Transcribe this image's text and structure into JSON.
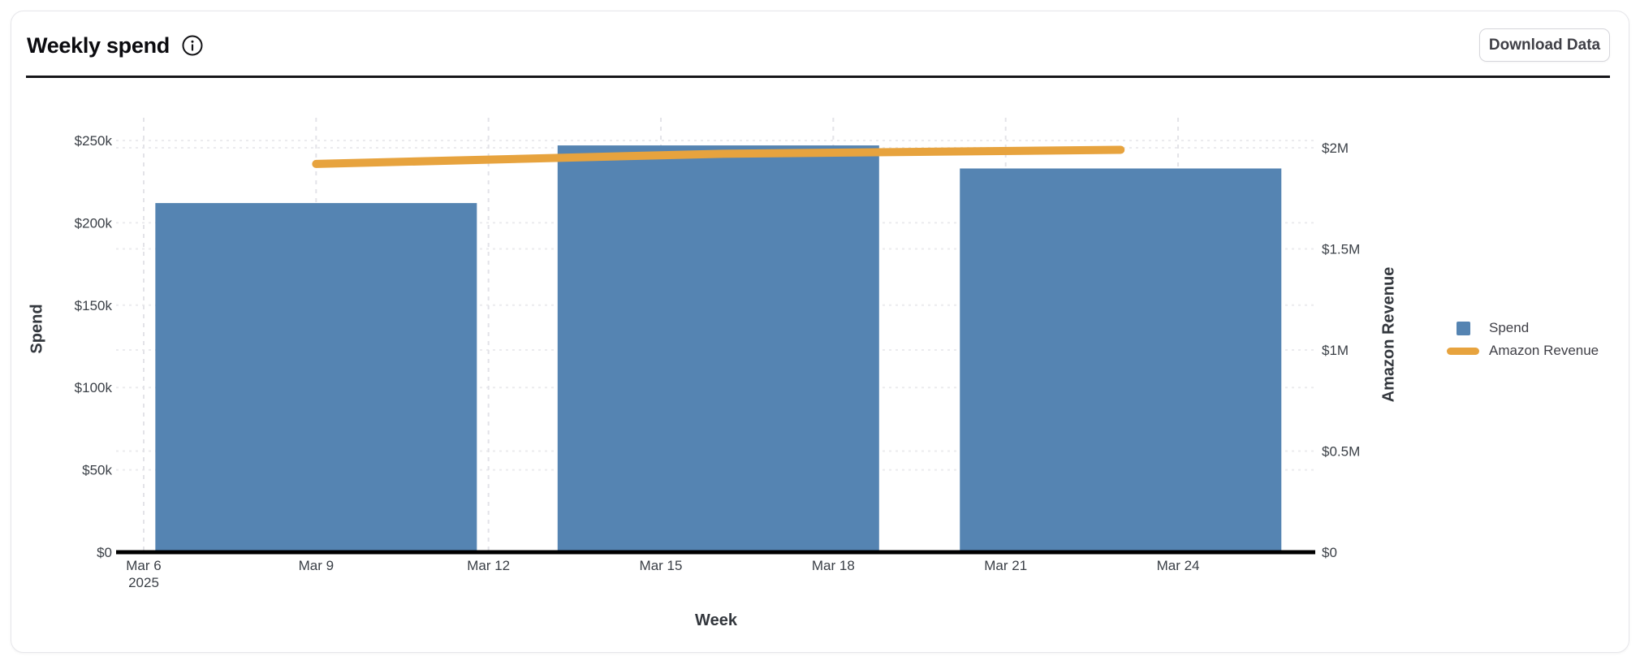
{
  "header": {
    "title": "Weekly spend",
    "info_icon": "info-icon",
    "download_button_label": "Download Data"
  },
  "legend": {
    "position": "right",
    "items": [
      {
        "label": "Spend",
        "marker": "square",
        "color": "#5584b2"
      },
      {
        "label": "Amazon Revenue",
        "marker": "line",
        "color": "#e7a33e"
      }
    ]
  },
  "chart_data": {
    "type": "bar",
    "title": "Weekly spend",
    "xlabel": "Week",
    "x_tick_labels": [
      [
        "Mar 6",
        "2025"
      ],
      "Mar 9",
      "Mar 12",
      "Mar 15",
      "Mar 18",
      "Mar 21",
      "Mar 24"
    ],
    "x_tick_day_offsets": [
      0,
      3,
      6,
      9,
      12,
      15,
      18
    ],
    "bar_center_day_offsets": [
      3,
      10,
      17
    ],
    "left_axis": {
      "label": "Spend",
      "tick_labels": [
        "$0",
        "$50k",
        "$100k",
        "$150k",
        "$200k",
        "$250k"
      ],
      "tick_values": [
        0,
        50000,
        100000,
        150000,
        200000,
        250000
      ],
      "range": [
        0,
        250000
      ]
    },
    "right_axis": {
      "label": "Amazon Revenue",
      "tick_labels": [
        "$0",
        "$0.5M",
        "$1M",
        "$1.5M",
        "$2M"
      ],
      "tick_values": [
        0,
        500000,
        1000000,
        1500000,
        2000000
      ],
      "range": [
        0,
        2000000
      ]
    },
    "series": [
      {
        "name": "Spend",
        "type": "bar",
        "axis": "left",
        "color": "#5584b2",
        "values": [
          212000,
          247000,
          233000
        ]
      },
      {
        "name": "Amazon Revenue",
        "type": "line",
        "axis": "right",
        "color": "#e7a33e",
        "values": [
          1920000,
          1970000,
          1990000
        ]
      }
    ],
    "grid": "dashed",
    "legend_position": "right"
  },
  "colors": {
    "bar": "#5584b2",
    "line": "#e7a33e",
    "axis_line": "#000000",
    "grid_vertical": "#e3e3e8",
    "grid_horizontal": "#ebebee",
    "tick_text": "#3a3f46"
  }
}
